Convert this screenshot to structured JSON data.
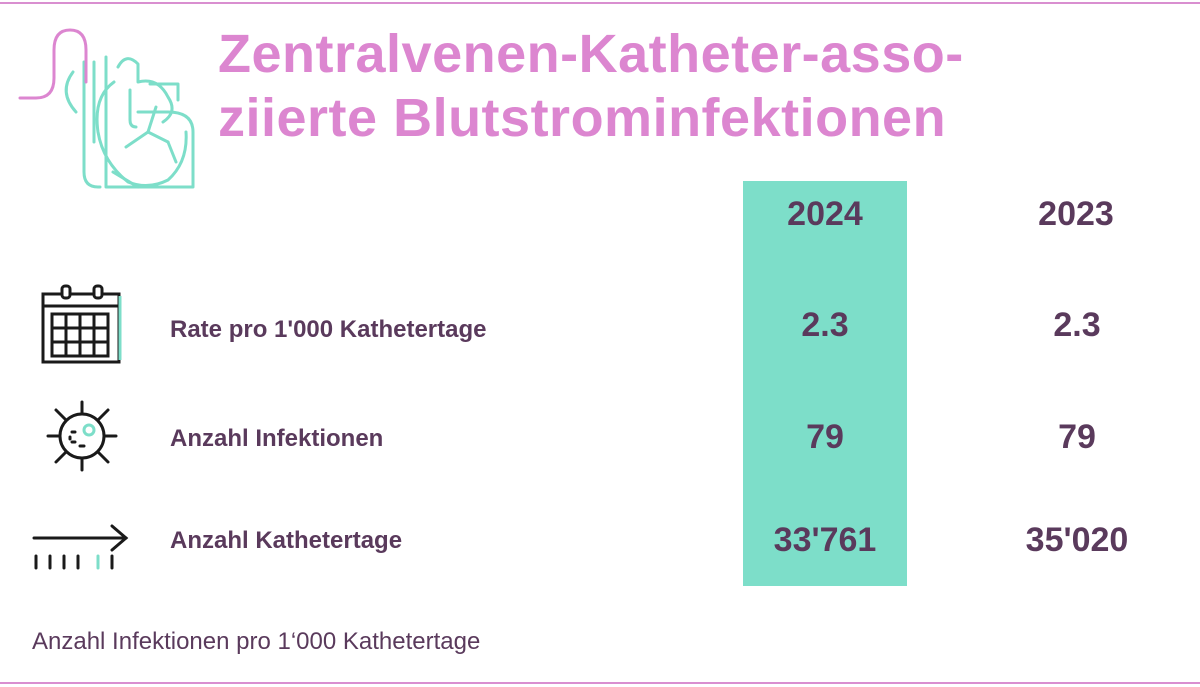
{
  "title": {
    "line1": "Zentralvenen-Katheter-asso-",
    "line2": "ziierte Blutstrominfektionen"
  },
  "columns": {
    "year_highlight": "2024",
    "year_other": "2023"
  },
  "rows": [
    {
      "label": "Rate pro 1'000 Kathetertage",
      "icon": "calendar-icon",
      "v2024": "2.3",
      "v2023": "2.3"
    },
    {
      "label": "Anzahl Infektionen",
      "icon": "virus-icon",
      "v2024": "79",
      "v2023": "79"
    },
    {
      "label": "Anzahl Kathetertage",
      "icon": "timeline-arrow-icon",
      "v2024": "33'761",
      "v2023": "35'020"
    }
  ],
  "footnote": "Anzahl Infektionen pro 1‘000 Kathetertage",
  "colors": {
    "title": "#dc86d0",
    "highlight_column": "#7ddec9",
    "text": "#5a3a5c",
    "icon_accent": "#7ddec9",
    "rule": "#d98fd0"
  }
}
